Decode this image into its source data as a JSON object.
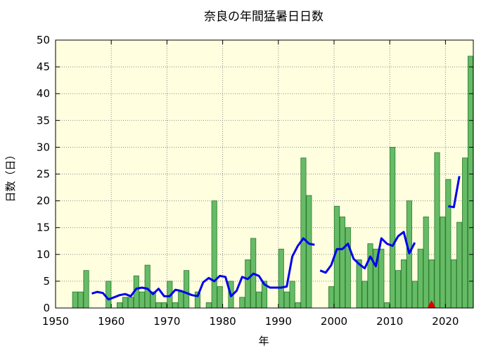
{
  "chart_data": {
    "type": "bar",
    "title": "奈良の年間猛暑日日数",
    "xlabel": "年",
    "ylabel": "日数（日）",
    "xlim": [
      1950,
      2025
    ],
    "ylim": [
      0,
      50
    ],
    "x_ticks": [
      1950,
      1960,
      1970,
      1980,
      1990,
      2000,
      2010,
      2020
    ],
    "y_ticks": [
      0,
      5,
      10,
      15,
      20,
      25,
      30,
      35,
      40,
      45,
      50
    ],
    "grid": true,
    "plot_background": "#ffffe0",
    "bar_color": "#66bb66",
    "bar_edge_color": "#2a7a2a",
    "line_color": "#0000ee",
    "marker_color": "#dd0000",
    "bars": {
      "years": [
        1953,
        1954,
        1955,
        1956,
        1957,
        1958,
        1959,
        1960,
        1961,
        1962,
        1963,
        1964,
        1965,
        1966,
        1967,
        1968,
        1969,
        1970,
        1971,
        1972,
        1973,
        1974,
        1975,
        1976,
        1977,
        1978,
        1979,
        1980,
        1981,
        1982,
        1983,
        1984,
        1985,
        1986,
        1987,
        1988,
        1989,
        1990,
        1991,
        1992,
        1993,
        1994,
        1995,
        1996,
        1997,
        1998,
        1999,
        2000,
        2001,
        2002,
        2003,
        2004,
        2005,
        2006,
        2007,
        2008,
        2009,
        2010,
        2011,
        2012,
        2013,
        2014,
        2015,
        2016,
        2017,
        2018,
        2019,
        2020,
        2021,
        2022,
        2023,
        2024
      ],
      "values": [
        3,
        3,
        7,
        0,
        0,
        0,
        5,
        0,
        1,
        2,
        2,
        6,
        3,
        8,
        3,
        1,
        1,
        5,
        1,
        3,
        7,
        0,
        3,
        0,
        1,
        20,
        4,
        0,
        5,
        0,
        2,
        9,
        13,
        3,
        5,
        0,
        0,
        11,
        3,
        5,
        1,
        28,
        21,
        0,
        0,
        0,
        4,
        19,
        17,
        15,
        0,
        9,
        5,
        12,
        11,
        11,
        1,
        30,
        7,
        9,
        20,
        5,
        11,
        17,
        9,
        29,
        17,
        24,
        9,
        16,
        28,
        47
      ]
    },
    "moving_average": {
      "segments": [
        {
          "years": [
            1956,
            1957,
            1958,
            1959,
            1960,
            1961,
            1962,
            1963,
            1964,
            1965,
            1966,
            1967,
            1968,
            1969,
            1970,
            1971,
            1972,
            1973,
            1974,
            1975,
            1976,
            1977,
            1978,
            1979,
            1980,
            1981,
            1982,
            1983,
            1984,
            1985,
            1986,
            1987,
            1988,
            1989,
            1990,
            1991,
            1992,
            1993,
            1994,
            1995,
            1996
          ],
          "values": [
            2.7,
            3.0,
            2.8,
            1.6,
            2.0,
            2.4,
            2.6,
            2.2,
            3.6,
            3.8,
            3.6,
            2.6,
            3.6,
            2.2,
            2.2,
            3.4,
            3.2,
            2.8,
            2.4,
            2.2,
            4.8,
            5.6,
            5.0,
            6.0,
            5.8,
            2.2,
            3.2,
            5.8,
            5.4,
            6.4,
            6.0,
            4.4,
            3.8,
            3.8,
            3.8,
            4.0,
            9.6,
            11.6,
            13.0,
            12.0,
            11.8
          ]
        },
        {
          "years": [
            1997,
            1998,
            1999,
            2000,
            2001,
            2002,
            2003,
            2004,
            2005,
            2006,
            2007,
            2008,
            2009,
            2010,
            2011,
            2012,
            2013,
            2014
          ],
          "values": [
            7.0,
            6.6,
            8.0,
            11.0,
            11.0,
            12.0,
            9.2,
            8.2,
            7.4,
            9.6,
            7.8,
            13.0,
            12.0,
            11.6,
            13.4,
            14.2,
            10.2,
            12.2
          ]
        },
        {
          "years": [
            2020,
            2021,
            2022
          ],
          "values": [
            19.0,
            18.8,
            24.6
          ]
        }
      ]
    },
    "markers": [
      {
        "year": 2017,
        "value": 0,
        "shape": "triangle"
      }
    ]
  }
}
